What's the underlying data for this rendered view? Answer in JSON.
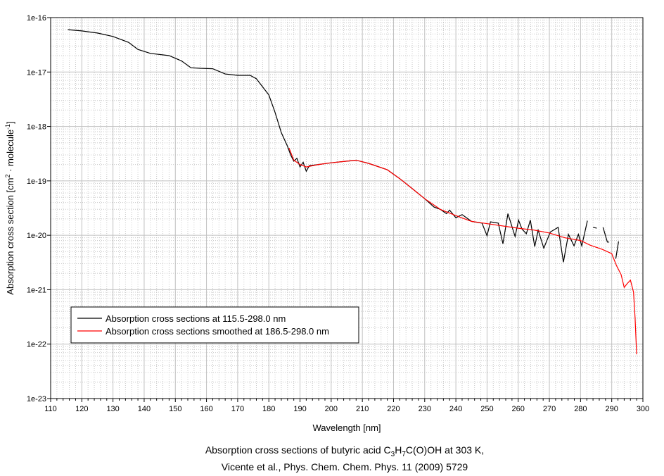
{
  "chart_data": {
    "type": "line",
    "xlabel": "Wavelength [nm]",
    "ylabel": "Absorption cross section [cm² · molecule⁻¹]",
    "ylabel_parts": [
      "Absorption cross section [cm",
      "2",
      " · molecule",
      "-1",
      "]"
    ],
    "xlim": [
      110,
      300
    ],
    "ylim": [
      1e-23,
      1e-16
    ],
    "yscale": "log",
    "grid": true,
    "xticks": [
      110,
      120,
      130,
      140,
      150,
      160,
      170,
      180,
      190,
      200,
      210,
      220,
      230,
      240,
      250,
      260,
      270,
      280,
      290,
      300
    ],
    "yticks": [
      "1e-16",
      "1e-17",
      "1e-18",
      "1e-19",
      "1e-20",
      "1e-21",
      "1e-22",
      "1e-23"
    ],
    "legend_position": "lower-left",
    "series": [
      {
        "name": "Absorption cross sections at 115.5-298.0 nm",
        "color": "#000000",
        "x": [
          115.5,
          120,
          125,
          130,
          135,
          138,
          142,
          148,
          152,
          155,
          158,
          162,
          166,
          170,
          174,
          176,
          180,
          182,
          184,
          186,
          187,
          188,
          189,
          190,
          191,
          192,
          193,
          196,
          200,
          205,
          208,
          212,
          218,
          222,
          226,
          230,
          233,
          235,
          237,
          238,
          240,
          242,
          245,
          248.4,
          250.0,
          251.1,
          253.6,
          255.1,
          256.7,
          259.0,
          260.1,
          261.2,
          262.6,
          263.9,
          265.3,
          266.4,
          268.2,
          270.3,
          272.8,
          274.5,
          276.1,
          277.9,
          279.3,
          280.4,
          282.2,
          283.0,
          284.0,
          285.2,
          286.0,
          287.2,
          288.6,
          289.2,
          290.0,
          291.3,
          292.2
        ],
        "y": [
          6e-17,
          5.7e-17,
          5.2e-17,
          4.5e-17,
          3.5e-17,
          2.6e-17,
          2.2e-17,
          2e-17,
          1.6e-17,
          1.2e-17,
          1.17e-17,
          1.15e-17,
          9.2e-18,
          8.7e-18,
          8.7e-18,
          7.5e-18,
          3.8e-18,
          1.8e-18,
          7.7e-19,
          4.3e-19,
          3e-19,
          2.3e-19,
          2.6e-19,
          1.8e-19,
          2.2e-19,
          1.5e-19,
          1.9e-19,
          2e-19,
          2.15e-19,
          2.3e-19,
          2.4e-19,
          2.1e-19,
          1.6e-19,
          1.1e-19,
          7.2e-20,
          4.7e-20,
          3.3e-20,
          3e-20,
          2.5e-20,
          2.9e-20,
          2.1e-20,
          2.4e-20,
          1.8e-20,
          1.67e-20,
          9.8e-21,
          1.77e-20,
          1.67e-20,
          7e-21,
          2.5e-20,
          9.5e-21,
          1.9e-20,
          1.3e-20,
          1.07e-20,
          1.9e-20,
          6.2e-21,
          1.24e-20,
          5.8e-21,
          1.15e-20,
          1.4e-20,
          3.2e-21,
          1.04e-20,
          6.4e-21,
          1.04e-20,
          6.4e-21,
          1.85e-20,
          null,
          1.4e-20,
          1.35e-20,
          null,
          1.4e-20,
          7.5e-21,
          7.5e-21,
          null,
          3.7e-21,
          7.7e-21
        ]
      },
      {
        "name": "Absorption cross sections smoothed at 186.5-298.0 nm",
        "color": "#ff0000",
        "x": [
          186.5,
          188,
          190,
          192,
          196,
          200,
          205,
          208,
          212,
          218,
          222,
          226,
          230,
          235,
          240,
          245,
          248,
          260,
          265,
          270,
          275,
          280,
          283,
          287,
          290,
          291.5,
          293,
          294,
          295,
          296,
          297,
          297.5,
          298
        ],
        "y": [
          4e-19,
          2.4e-19,
          2e-19,
          1.8e-19,
          2e-19,
          2.15e-19,
          2.3e-19,
          2.4e-19,
          2.1e-19,
          1.6e-19,
          1.1e-19,
          7.2e-20,
          4.7e-20,
          3e-20,
          2.3e-20,
          1.8e-20,
          1.7e-20,
          1.35e-20,
          1.25e-20,
          1.1e-20,
          9e-21,
          8e-21,
          6.6e-21,
          5.5e-21,
          4.6e-21,
          2.8e-21,
          1.9e-21,
          1.1e-21,
          1.3e-21,
          1.5e-21,
          9e-22,
          3e-22,
          6.5e-23
        ]
      }
    ]
  },
  "caption": {
    "line1_pre": "Absorption cross sections of butyric acid C",
    "sub1": "3",
    "mid": "H",
    "sub2": "7",
    "line1_post": "C(O)OH at 303 K,",
    "line2": "Vicente et al., Phys. Chem. Chem. Phys. 11 (2009) 5729"
  }
}
